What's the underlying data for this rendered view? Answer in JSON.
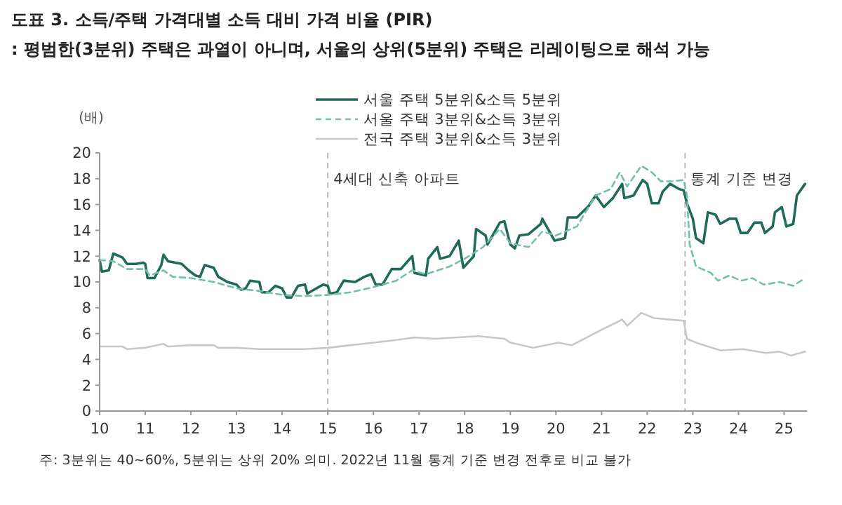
{
  "chart_data": {
    "type": "line",
    "title": "도표 3. 소득/주택 가격대별 소득 대비 가격 비율 (PIR)",
    "subtitle": ": 평범한(3분위) 주택은 과열이 아니며, 서울의 상위(5분위) 주택은 리레이팅으로 해석 가능",
    "ylabel": "(배)",
    "annotations": [
      "주: 3분위는 40~60%, 5분위는 상위 20% 의미. 2022년 11월 통계 기준 변경 전후로 비교 불가"
    ],
    "xlim": [
      2010,
      2025.5
    ],
    "xticks": [
      {
        "value": 2010,
        "label": "10"
      },
      {
        "value": 2011,
        "label": "11"
      },
      {
        "value": 2012,
        "label": "12"
      },
      {
        "value": 2013,
        "label": "13"
      },
      {
        "value": 2014,
        "label": "14"
      },
      {
        "value": 2015,
        "label": "15"
      },
      {
        "value": 2016,
        "label": "16"
      },
      {
        "value": 2017,
        "label": "17"
      },
      {
        "value": 2018,
        "label": "18"
      },
      {
        "value": 2019,
        "label": "19"
      },
      {
        "value": 2020,
        "label": "20"
      },
      {
        "value": 2021,
        "label": "21"
      },
      {
        "value": 2022,
        "label": "22"
      },
      {
        "value": 2023,
        "label": "23"
      },
      {
        "value": 2024,
        "label": "24"
      },
      {
        "value": 2025,
        "label": "25"
      }
    ],
    "ylim": [
      0,
      20
    ],
    "yticks": [
      0,
      2,
      4,
      6,
      8,
      10,
      12,
      14,
      16,
      18,
      20
    ],
    "grid": false,
    "legend": "top",
    "marker": "none",
    "ref_lines": [
      {
        "axis": "x",
        "value": 2015,
        "label": "4세대 신축 아파트",
        "color": "#bbbbbb",
        "line_style": "dashed"
      },
      {
        "axis": "x",
        "value": 2022.83,
        "label": "통계 기준 변경",
        "color": "#bbbbbb",
        "line_style": "dashed"
      }
    ],
    "series": [
      {
        "name": "서울 주택 5분위&소득 5분위",
        "color": "#1f6b5a",
        "line_style": "solid",
        "x": [
          2010,
          2010.05,
          2010.2,
          2010.3,
          2010.5,
          2010.6,
          2010.8,
          2010.95,
          2011,
          2011.05,
          2011.2,
          2011.35,
          2011.4,
          2011.5,
          2011.8,
          2011.95,
          2012.1,
          2012.2,
          2012.3,
          2012.5,
          2012.6,
          2012.8,
          2013,
          2013.1,
          2013.2,
          2013.3,
          2013.5,
          2013.55,
          2013.7,
          2013.85,
          2014,
          2014.1,
          2014.2,
          2014.35,
          2014.5,
          2014.55,
          2014.7,
          2014.9,
          2015,
          2015.05,
          2015.2,
          2015.35,
          2015.6,
          2015.8,
          2015.95,
          2016.05,
          2016.2,
          2016.4,
          2016.6,
          2016.85,
          2016.9,
          2017.15,
          2017.2,
          2017.4,
          2017.46,
          2017.67,
          2017.87,
          2017.97,
          2018.2,
          2018.25,
          2018.46,
          2018.5,
          2018.77,
          2018.87,
          2019,
          2019.1,
          2019.2,
          2019.4,
          2019.67,
          2019.7,
          2019.97,
          2020.2,
          2020.26,
          2020.46,
          2020.72,
          2020.87,
          2021.05,
          2021.25,
          2021.45,
          2021.5,
          2021.7,
          2021.9,
          2022,
          2022.1,
          2022.25,
          2022.34,
          2022.5,
          2022.7,
          2022.8,
          2022.87,
          2023,
          2023.07,
          2023.23,
          2023.33,
          2023.5,
          2023.6,
          2023.8,
          2023.95,
          2024.05,
          2024.2,
          2024.35,
          2024.5,
          2024.58,
          2024.75,
          2024.8,
          2024.95,
          2025.05,
          2025.2,
          2025.28,
          2025.46
        ],
        "values": [
          11.7,
          10.8,
          10.9,
          12.2,
          11.9,
          11.4,
          11.4,
          11.5,
          11.4,
          10.3,
          10.3,
          11.3,
          12.1,
          11.6,
          11.4,
          10.9,
          10.5,
          10.4,
          11.3,
          11.1,
          10.4,
          10.0,
          9.8,
          9.4,
          9.5,
          10.1,
          10.0,
          9.2,
          9.2,
          9.7,
          9.5,
          8.8,
          8.8,
          9.7,
          9.8,
          9.1,
          9.4,
          9.8,
          9.7,
          9.1,
          9.2,
          10.1,
          10.0,
          10.4,
          10.6,
          9.8,
          9.8,
          11.0,
          11.0,
          12.0,
          10.7,
          10.5,
          11.8,
          12.7,
          11.8,
          12.0,
          13.2,
          11.1,
          12.0,
          14.1,
          13.6,
          12.9,
          14.6,
          14.7,
          12.9,
          12.6,
          13.6,
          13.7,
          14.5,
          14.9,
          13.2,
          13.4,
          15.0,
          15.0,
          15.9,
          16.7,
          15.8,
          16.5,
          17.6,
          16.5,
          16.7,
          17.9,
          17.6,
          16.1,
          16.1,
          17.0,
          17.6,
          17.2,
          17.1,
          16.1,
          14.9,
          13.4,
          13.0,
          15.4,
          15.2,
          14.5,
          14.9,
          14.9,
          13.8,
          13.8,
          14.6,
          14.6,
          13.8,
          14.3,
          15.4,
          15.8,
          14.3,
          14.5,
          16.7,
          17.6
        ]
      },
      {
        "name": "서울 주택 3분위&소득 3분위",
        "color": "#6fc1aa",
        "line_style": "dashed",
        "x": [
          2010,
          2010.3,
          2010.6,
          2011,
          2011.1,
          2011.4,
          2011.6,
          2012,
          2012.5,
          2013,
          2013.5,
          2014,
          2014.5,
          2015,
          2015.5,
          2016,
          2016.5,
          2016.85,
          2017.15,
          2017.67,
          2018,
          2018.4,
          2018.77,
          2019,
          2019.4,
          2019.7,
          2020,
          2020.46,
          2020.87,
          2021.2,
          2021.4,
          2021.56,
          2021.87,
          2022.1,
          2022.3,
          2022.55,
          2022.8,
          2022.87,
          2022.93,
          2023.07,
          2023.4,
          2023.55,
          2023.8,
          2024.05,
          2024.3,
          2024.55,
          2024.9,
          2025.2,
          2025.46
        ],
        "values": [
          11.7,
          11.6,
          11.0,
          11.0,
          10.5,
          10.9,
          10.4,
          10.3,
          10.0,
          9.5,
          9.3,
          9.0,
          8.9,
          9.0,
          9.2,
          9.6,
          10.1,
          10.9,
          10.6,
          11.2,
          11.8,
          12.7,
          14.1,
          13.0,
          12.7,
          13.9,
          13.6,
          14.3,
          16.7,
          17.2,
          18.5,
          17.4,
          19.0,
          18.5,
          17.8,
          17.8,
          17.9,
          16.7,
          12.9,
          11.2,
          10.7,
          10.1,
          10.5,
          10.1,
          10.3,
          9.8,
          10.0,
          9.7,
          10.3
        ]
      },
      {
        "name": "전국 주택 3분위&소득 3분위",
        "color": "#c8c8c8",
        "line_style": "solid",
        "x": [
          2010,
          2010.5,
          2010.6,
          2011,
          2011.4,
          2011.5,
          2012,
          2012.5,
          2012.6,
          2013,
          2013.5,
          2014,
          2014.5,
          2015,
          2015.5,
          2016,
          2016.5,
          2016.9,
          2017.35,
          2018.3,
          2018.87,
          2019,
          2019.5,
          2020.05,
          2020.35,
          2021,
          2021.35,
          2021.45,
          2021.56,
          2021.87,
          2022.15,
          2022.45,
          2022.8,
          2022.87,
          2023.07,
          2023.6,
          2024.1,
          2024.6,
          2024.9,
          2025.15,
          2025.46
        ],
        "values": [
          5.0,
          5.0,
          4.8,
          4.9,
          5.2,
          5.0,
          5.1,
          5.1,
          4.9,
          4.9,
          4.8,
          4.8,
          4.8,
          4.9,
          5.1,
          5.3,
          5.5,
          5.7,
          5.6,
          5.8,
          5.6,
          5.3,
          4.9,
          5.3,
          5.1,
          6.3,
          6.9,
          7.1,
          6.6,
          7.6,
          7.2,
          7.1,
          7.0,
          5.6,
          5.3,
          4.7,
          4.8,
          4.5,
          4.6,
          4.3,
          4.6
        ]
      }
    ]
  }
}
